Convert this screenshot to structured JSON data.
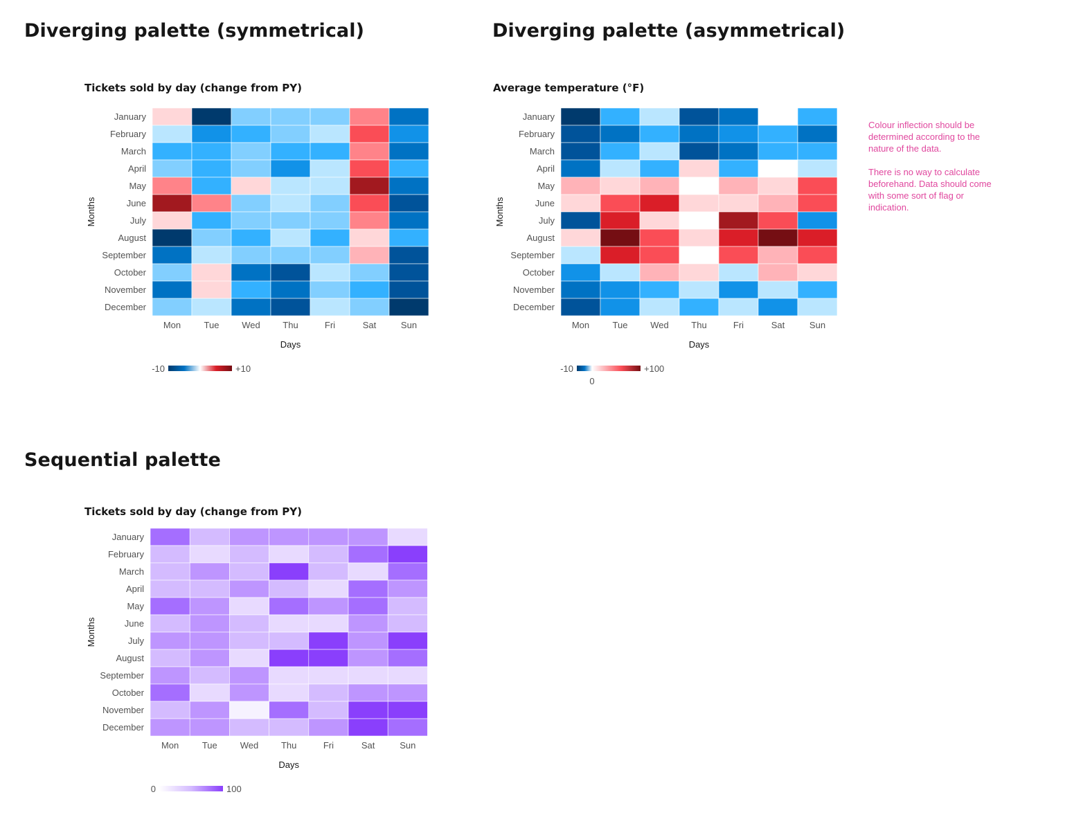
{
  "sections": {
    "symmetrical": "Diverging palette (symmetrical)",
    "asymmetrical": "Diverging palette (asymmetrical)",
    "sequential": "Sequential palette"
  },
  "note": {
    "line1": "Colour inflection should be determined according to the nature of the data.",
    "line2": "There is no way to calculate beforehand. Data should come with some sort of flag or indication."
  },
  "colors": {
    "blue": [
      "#e8f5ff",
      "#bae6ff",
      "#82cfff",
      "#33b1ff",
      "#1192e8",
      "#0072c3",
      "#00539a",
      "#003a6d"
    ],
    "red": [
      "#fff1f1",
      "#ffd7d9",
      "#ffb3b8",
      "#ff8389",
      "#fa4d56",
      "#da1e28",
      "#a2191f",
      "#750e13"
    ],
    "purple": [
      "#f6f2ff",
      "#e8daff",
      "#d4bbff",
      "#be95ff",
      "#a56eff",
      "#8a3ffc"
    ],
    "accent_note": "#e0479e"
  },
  "chart_data": [
    {
      "type": "heatmap",
      "title": "Tickets sold by day (change from PY)",
      "xlabel": "Days",
      "ylabel": "Months",
      "x": [
        "Mon",
        "Tue",
        "Wed",
        "Thu",
        "Fri",
        "Sat",
        "Sun"
      ],
      "y": [
        "January",
        "February",
        "March",
        "April",
        "May",
        "June",
        "July",
        "August",
        "September",
        "October",
        "November",
        "December"
      ],
      "values": [
        [
          1,
          -10,
          -3,
          -3,
          -3,
          4,
          -7
        ],
        [
          -2,
          -6,
          -4,
          -3,
          -2,
          6,
          -6
        ],
        [
          -4,
          -4,
          -3,
          -4,
          -4,
          4,
          -7
        ],
        [
          -3,
          -4,
          -3,
          -6,
          -2,
          6,
          -4
        ],
        [
          4,
          -4,
          1,
          -2,
          -2,
          9,
          -7
        ],
        [
          8,
          4,
          -3,
          -2,
          -3,
          6,
          -8
        ],
        [
          1,
          -4,
          -3,
          -3,
          -3,
          4,
          -7
        ],
        [
          -10,
          -3,
          -4,
          -2,
          -4,
          1,
          -4
        ],
        [
          -7,
          -2,
          -3,
          -3,
          -3,
          3,
          -8
        ],
        [
          -3,
          1,
          -7,
          -8,
          -2,
          -3,
          -8
        ],
        [
          -7,
          1,
          -4,
          -7,
          -3,
          -4,
          -8
        ],
        [
          -3,
          -2,
          -7,
          -8,
          -2,
          -3,
          -10
        ]
      ],
      "scale": {
        "min": -10,
        "max": 10,
        "midpoint": 0
      },
      "legend": {
        "min_label": "-10",
        "max_label": "+10",
        "position": "bottom-left"
      }
    },
    {
      "type": "heatmap",
      "title": "Average temperature (°F)",
      "xlabel": "Days",
      "ylabel": "Months",
      "x": [
        "Mon",
        "Tue",
        "Wed",
        "Thu",
        "Fri",
        "Sat",
        "Sun"
      ],
      "y": [
        "January",
        "February",
        "March",
        "April",
        "May",
        "June",
        "July",
        "August",
        "September",
        "October",
        "November",
        "December"
      ],
      "values": [
        [
          -10,
          -4,
          -2,
          -8,
          -7,
          0,
          -4
        ],
        [
          -8,
          -7,
          -4,
          -7,
          -6,
          -4,
          -7
        ],
        [
          -8,
          -4,
          -2,
          -8,
          -7,
          -4,
          -4
        ],
        [
          -7,
          -2,
          -4,
          15,
          -4,
          0,
          -2
        ],
        [
          35,
          18,
          35,
          0,
          35,
          18,
          55
        ],
        [
          18,
          55,
          72,
          18,
          18,
          35,
          55
        ],
        [
          -8,
          72,
          18,
          0,
          85,
          55,
          -6
        ],
        [
          18,
          95,
          55,
          18,
          72,
          95,
          72
        ],
        [
          -2,
          72,
          55,
          0,
          55,
          35,
          55
        ],
        [
          -6,
          -2,
          35,
          18,
          -2,
          35,
          18
        ],
        [
          -7,
          -6,
          -4,
          -2,
          -6,
          -2,
          -4
        ],
        [
          -8,
          -6,
          -2,
          -4,
          -2,
          -6,
          -2
        ]
      ],
      "scale": {
        "min": -10,
        "max": 100,
        "midpoint": 0
      },
      "legend": {
        "min_label": "-10",
        "mid_label": "0",
        "max_label": "+100",
        "position": "bottom-left"
      }
    },
    {
      "type": "heatmap",
      "title": "Tickets sold by day (change from PY)",
      "xlabel": "Days",
      "ylabel": "Months",
      "x": [
        "Mon",
        "Tue",
        "Wed",
        "Thu",
        "Fri",
        "Sat",
        "Sun"
      ],
      "y": [
        "January",
        "February",
        "March",
        "April",
        "May",
        "June",
        "July",
        "August",
        "September",
        "October",
        "November",
        "December"
      ],
      "values": [
        [
          80,
          45,
          60,
          50,
          55,
          65,
          15
        ],
        [
          45,
          10,
          35,
          10,
          35,
          85,
          90
        ],
        [
          35,
          55,
          35,
          95,
          35,
          15,
          75
        ],
        [
          35,
          35,
          50,
          35,
          15,
          75,
          55
        ],
        [
          70,
          55,
          15,
          75,
          55,
          75,
          30
        ],
        [
          40,
          50,
          40,
          15,
          15,
          50,
          30
        ],
        [
          55,
          60,
          35,
          45,
          90,
          50,
          95
        ],
        [
          35,
          55,
          25,
          90,
          90,
          50,
          80
        ],
        [
          60,
          35,
          65,
          15,
          20,
          10,
          10
        ],
        [
          75,
          20,
          65,
          15,
          30,
          60,
          60
        ],
        [
          35,
          60,
          5,
          75,
          35,
          90,
          90
        ],
        [
          50,
          50,
          40,
          30,
          60,
          95,
          85
        ]
      ],
      "scale": {
        "min": 0,
        "max": 100
      },
      "legend": {
        "min_label": "0",
        "max_label": "100",
        "position": "bottom-left"
      }
    }
  ]
}
